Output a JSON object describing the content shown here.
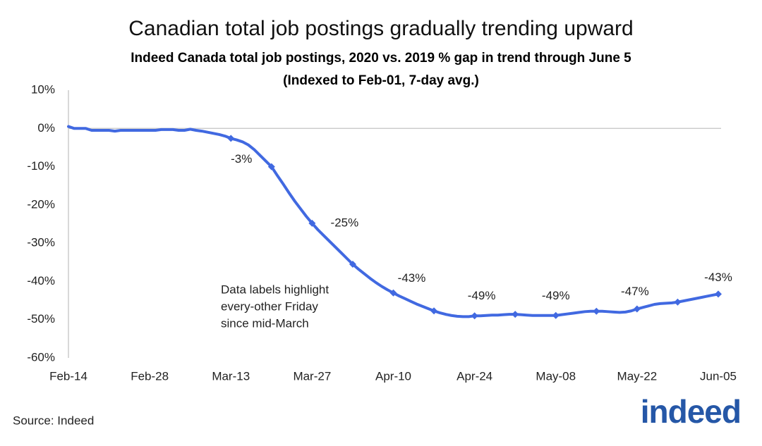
{
  "chart_data": {
    "type": "line",
    "title": "Canadian total job postings gradually trending upward",
    "subtitle": [
      "Indeed Canada total job postings, 2020 vs. 2019 % gap in trend through June 5",
      "(Indexed to Feb-01, 7-day avg.)"
    ],
    "annotation": [
      "Data labels highlight",
      "every-other Friday",
      "since mid-March"
    ],
    "source": "Source: Indeed",
    "logo": "indeed",
    "categories": [
      "Feb-14",
      null,
      null,
      null,
      null,
      null,
      null,
      null,
      null,
      null,
      null,
      null,
      null,
      null,
      "Feb-28",
      null,
      null,
      null,
      null,
      null,
      null,
      null,
      null,
      null,
      null,
      null,
      null,
      null,
      "Mar-13",
      null,
      null,
      null,
      null,
      null,
      null,
      null,
      null,
      null,
      null,
      null,
      null,
      null,
      "Mar-27",
      null,
      null,
      null,
      null,
      null,
      null,
      null,
      null,
      null,
      null,
      null,
      null,
      null,
      "Apr-10",
      null,
      null,
      null,
      null,
      null,
      null,
      null,
      null,
      null,
      null,
      null,
      null,
      null,
      "Apr-24",
      null,
      null,
      null,
      null,
      null,
      null,
      null,
      null,
      null,
      null,
      null,
      null,
      null,
      "May-08",
      null,
      null,
      null,
      null,
      null,
      null,
      null,
      null,
      null,
      null,
      null,
      null,
      null,
      "May-22",
      null,
      null,
      null,
      null,
      null,
      null,
      null,
      null,
      null,
      null,
      null,
      null,
      null,
      "Jun-05"
    ],
    "series": [
      {
        "color": "#4169e1",
        "values": [
          0.5,
          0,
          0,
          0,
          -0.5,
          -0.5,
          -0.5,
          -0.5,
          -0.7,
          -0.5,
          -0.5,
          -0.5,
          -0.5,
          -0.5,
          -0.5,
          -0.5,
          -0.3,
          -0.3,
          -0.3,
          -0.5,
          -0.5,
          -0.2,
          -0.5,
          -0.7,
          -1,
          -1.3,
          -1.6,
          -2,
          -2.6,
          -3,
          -3.5,
          -4.3,
          -5.5,
          -7,
          -8.5,
          -10,
          -12.3,
          -14.5,
          -16.8,
          -19,
          -21,
          -23,
          -24.8,
          -26.5,
          -28,
          -29.5,
          -31,
          -32.5,
          -34,
          -35.5,
          -36.8,
          -38,
          -39.2,
          -40.3,
          -41.3,
          -42.2,
          -43,
          -43.8,
          -44.5,
          -45.2,
          -45.9,
          -46.5,
          -47.1,
          -47.7,
          -48.2,
          -48.6,
          -48.9,
          -49.1,
          -49.2,
          -49.2,
          -49,
          -49,
          -48.9,
          -48.8,
          -48.8,
          -48.7,
          -48.6,
          -48.6,
          -48.7,
          -48.8,
          -48.9,
          -48.9,
          -48.9,
          -48.9,
          -48.9,
          -48.7,
          -48.5,
          -48.3,
          -48.1,
          -47.9,
          -47.8,
          -47.8,
          -47.8,
          -47.9,
          -48,
          -48.1,
          -48,
          -47.7,
          -47.2,
          -46.8,
          -46.4,
          -46,
          -45.8,
          -45.7,
          -45.6,
          -45.4,
          -45.1,
          -44.8,
          -44.5,
          -44.2,
          -43.9,
          -43.6,
          -43.3
        ],
        "value_labels": [
          null,
          null,
          null,
          null,
          null,
          null,
          null,
          null,
          null,
          null,
          null,
          null,
          null,
          null,
          null,
          null,
          null,
          null,
          null,
          null,
          null,
          null,
          null,
          null,
          null,
          null,
          null,
          null,
          "-3%",
          null,
          null,
          null,
          null,
          null,
          null,
          null,
          null,
          null,
          null,
          null,
          null,
          null,
          "-25%",
          null,
          null,
          null,
          null,
          null,
          null,
          null,
          null,
          null,
          null,
          null,
          null,
          null,
          "-43%",
          null,
          null,
          null,
          null,
          null,
          null,
          null,
          null,
          null,
          null,
          null,
          null,
          null,
          "-49%",
          null,
          null,
          null,
          null,
          null,
          null,
          null,
          null,
          null,
          null,
          null,
          null,
          null,
          "-49%",
          null,
          null,
          null,
          null,
          null,
          null,
          null,
          null,
          null,
          null,
          null,
          null,
          null,
          "-47%",
          null,
          null,
          null,
          null,
          null,
          null,
          null,
          null,
          null,
          null,
          null,
          null,
          null,
          "-43%"
        ]
      }
    ],
    "ylim": [
      -60,
      10
    ],
    "yticks": [
      {
        "value": -60,
        "label": "-60%"
      },
      {
        "value": -50,
        "label": "-50%"
      },
      {
        "value": -40,
        "label": "-40%"
      },
      {
        "value": -30,
        "label": "-30%"
      },
      {
        "value": -20,
        "label": "-20%"
      },
      {
        "value": -10,
        "label": "-10%"
      },
      {
        "value": 0,
        "label": "0%"
      },
      {
        "value": 10,
        "label": "10%"
      }
    ],
    "grid": false
  }
}
